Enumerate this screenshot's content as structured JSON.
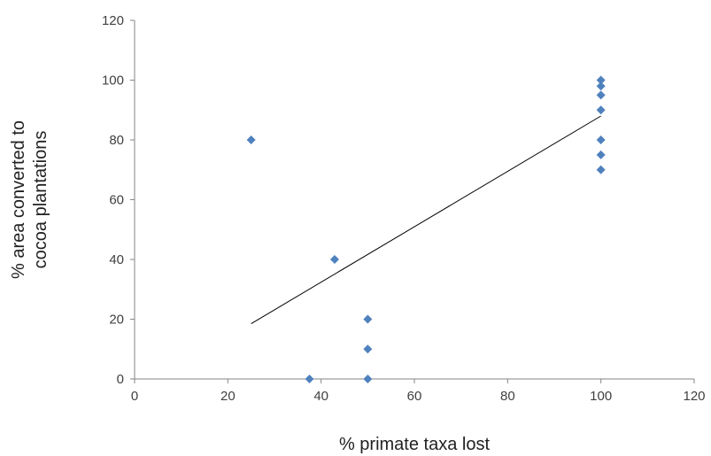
{
  "chart_data": {
    "type": "scatter",
    "title": "",
    "xlabel": "% primate taxa lost",
    "ylabel_lines": [
      "% area converted to",
      "cocoa plantations"
    ],
    "xlim": [
      0,
      120
    ],
    "ylim": [
      0,
      120
    ],
    "xticks": [
      0,
      20,
      40,
      60,
      80,
      100,
      120
    ],
    "yticks": [
      0,
      20,
      40,
      60,
      80,
      100,
      120
    ],
    "grid": false,
    "legend": "none",
    "marker": "diamond",
    "marker_color": "#4F81BD",
    "trendline_color": "#000000",
    "points": [
      {
        "x": 25,
        "y": 80
      },
      {
        "x": 37.5,
        "y": 0
      },
      {
        "x": 42.9,
        "y": 40
      },
      {
        "x": 50,
        "y": 20
      },
      {
        "x": 50,
        "y": 10
      },
      {
        "x": 50,
        "y": 0
      },
      {
        "x": 100,
        "y": 100
      },
      {
        "x": 100,
        "y": 98
      },
      {
        "x": 100,
        "y": 95
      },
      {
        "x": 100,
        "y": 90
      },
      {
        "x": 100,
        "y": 80
      },
      {
        "x": 100,
        "y": 75
      },
      {
        "x": 100,
        "y": 70
      }
    ],
    "trendline": {
      "type": "linear",
      "x": [
        25,
        100
      ],
      "y": [
        18.5,
        88
      ]
    }
  }
}
